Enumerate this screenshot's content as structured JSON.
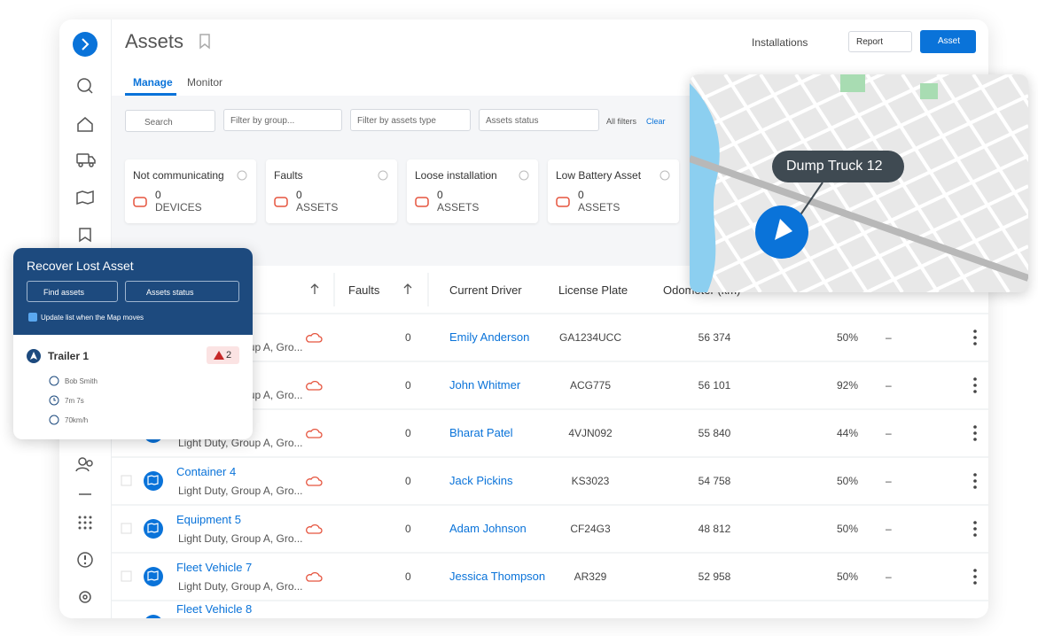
{
  "header": {
    "title": "Assets",
    "installations": "Installations",
    "report": "Report",
    "add_button": "Asset"
  },
  "tabs": [
    "Manage",
    "Monitor"
  ],
  "filters": {
    "search": "Search",
    "group": "Filter by group...",
    "type": "Filter by assets type",
    "status": "Assets status",
    "all": "All filters",
    "clear": "Clear"
  },
  "cards": [
    {
      "title": "Not communicating",
      "count": "0",
      "unit": "DEVICES"
    },
    {
      "title": "Faults",
      "count": "0",
      "unit": "ASSETS"
    },
    {
      "title": "Loose installation",
      "count": "0",
      "unit": "ASSETS"
    },
    {
      "title": "Low Battery Asset",
      "count": "0",
      "unit": "ASSETS"
    }
  ],
  "table": {
    "columns": [
      "Faults",
      "Current Driver",
      "License Plate",
      "Odometer (km)"
    ],
    "rows": [
      {
        "group": "Light Duty, Group A, Gro...",
        "faults": "0",
        "driver": "Emily Anderson",
        "plate": "GA1234UCC",
        "odometer": "56 374",
        "battery": "50%",
        "status": "–"
      },
      {
        "group": "Light Duty, Group A, Gro...",
        "faults": "0",
        "driver": "John Whitmer",
        "plate": "ACG775",
        "odometer": "56 101",
        "battery": "92%",
        "status": "–"
      },
      {
        "group": "Light Duty, Group A, Gro...",
        "faults": "0",
        "driver": "Bharat Patel",
        "plate": "4VJN092",
        "odometer": "55 840",
        "battery": "44%",
        "status": "–"
      },
      {
        "name": "Container 4",
        "group": "Light Duty, Group A, Gro...",
        "faults": "0",
        "driver": "Jack Pickins",
        "plate": "KS3023",
        "odometer": "54 758",
        "battery": "50%",
        "status": "–"
      },
      {
        "name": "Equipment 5",
        "group": "Light Duty, Group A, Gro...",
        "faults": "0",
        "driver": "Adam Johnson",
        "plate": "CF24G3",
        "odometer": "48 812",
        "battery": "50%",
        "status": "–"
      },
      {
        "name": "Fleet Vehicle 7",
        "group": "Light Duty, Group A, Gro...",
        "faults": "0",
        "driver": "Jessica Thompson",
        "plate": "AR329",
        "odometer": "52 958",
        "battery": "50%",
        "status": "–"
      },
      {
        "name": "Fleet Vehicle 8"
      }
    ]
  },
  "map": {
    "label": "Dump Truck 12"
  },
  "panel": {
    "title": "Recover Lost Asset",
    "search": "Find assets",
    "status": "Assets status",
    "checkbox": "Update list when the Map moves",
    "asset": {
      "name": "Trailer 1",
      "alerts": "2",
      "driver": "Bob Smith",
      "duration": "7m 7s",
      "speed": "70km/h"
    }
  }
}
